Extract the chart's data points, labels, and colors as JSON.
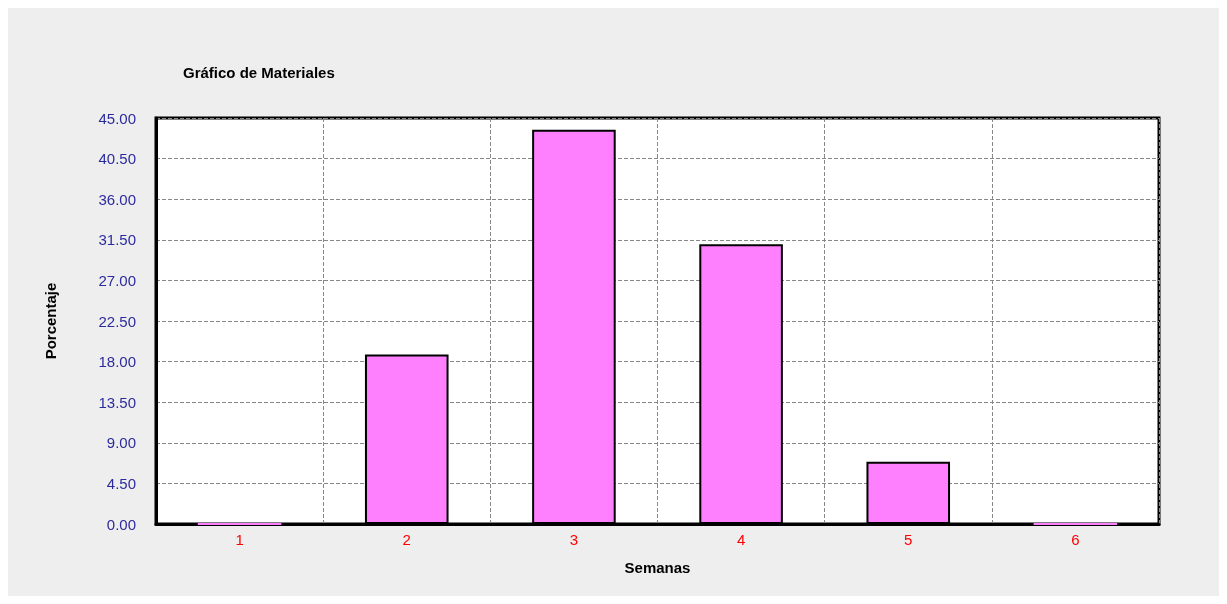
{
  "chart_data": {
    "type": "bar",
    "title": "Gráfico de Materiales",
    "xlabel": "Semanas",
    "ylabel": "Porcentaje",
    "categories": [
      "1",
      "2",
      "3",
      "4",
      "5",
      "6"
    ],
    "values": [
      0,
      18.8,
      43.7,
      31.0,
      6.9,
      0
    ],
    "color": "#ff80ff",
    "ylim": [
      0,
      45
    ],
    "yticks": [
      {
        "value": 0,
        "label": "0.00"
      },
      {
        "value": 4.5,
        "label": "4.50"
      },
      {
        "value": 9,
        "label": "9.00"
      },
      {
        "value": 13.5,
        "label": "13.50"
      },
      {
        "value": 18,
        "label": "18.00"
      },
      {
        "value": 22.5,
        "label": "22.50"
      },
      {
        "value": 27,
        "label": "27.00"
      },
      {
        "value": 31.5,
        "label": "31.50"
      },
      {
        "value": 36,
        "label": "36.00"
      },
      {
        "value": 40.5,
        "label": "40.50"
      },
      {
        "value": 45,
        "label": "45.00"
      }
    ],
    "grid": true
  }
}
